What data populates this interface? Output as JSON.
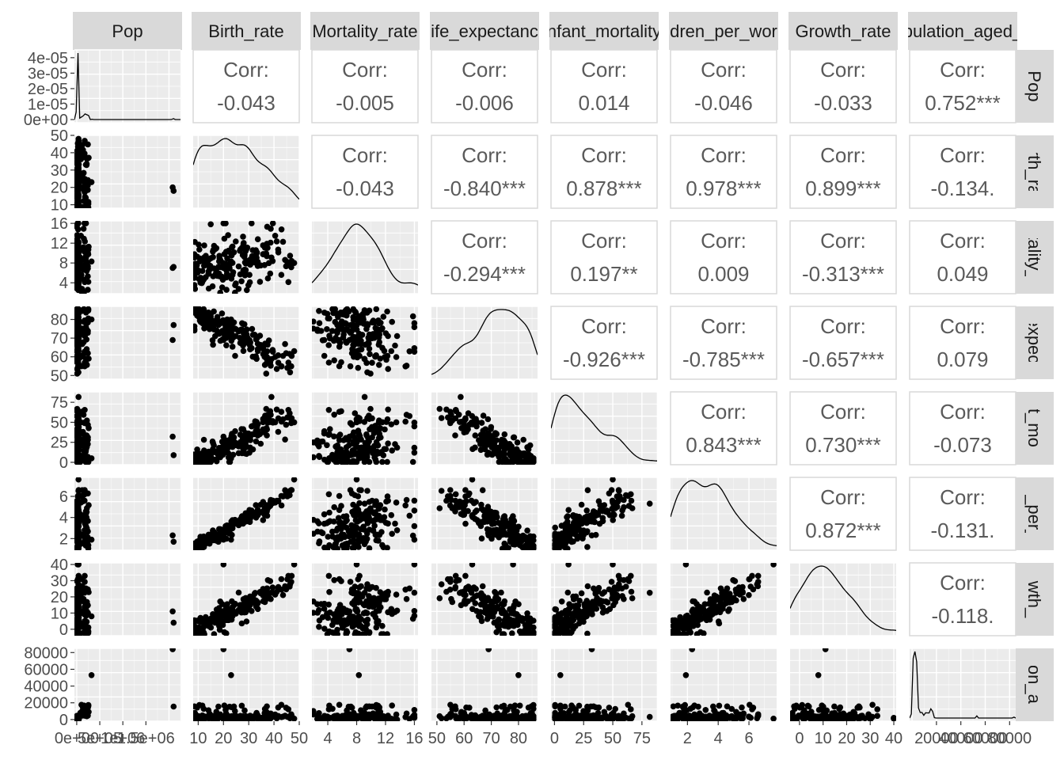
{
  "chart_data": {
    "type": "scatter",
    "variables": [
      "Pop",
      "Birth_rate",
      "Mortality_rate",
      "Life_expectancy",
      "Infant_mortality",
      "Children_per_woman",
      "Growth_rate",
      "Population_aged_"
    ],
    "col_labels": [
      "Pop",
      "Birth_rate",
      "Mortality_rate",
      "ife_expectanc",
      "nfant_mortality",
      "dren_per_wor",
      "Growth_rate",
      "pulation_aged_"
    ],
    "row_labels": [
      "Pop",
      "Birth_rate",
      "ortality_ra",
      "_expecta",
      "ant_morta",
      "en_per_w",
      "rowth_ra",
      "ation_age"
    ],
    "corr_label": "Corr:",
    "correlations": [
      {
        "row": 0,
        "col": 1,
        "value": "-0.043"
      },
      {
        "row": 0,
        "col": 2,
        "value": "-0.005"
      },
      {
        "row": 0,
        "col": 3,
        "value": "-0.006"
      },
      {
        "row": 0,
        "col": 4,
        "value": "0.014"
      },
      {
        "row": 0,
        "col": 5,
        "value": "-0.046"
      },
      {
        "row": 0,
        "col": 6,
        "value": "-0.033"
      },
      {
        "row": 0,
        "col": 7,
        "value": "0.752***"
      },
      {
        "row": 1,
        "col": 2,
        "value": "-0.043"
      },
      {
        "row": 1,
        "col": 3,
        "value": "-0.840***"
      },
      {
        "row": 1,
        "col": 4,
        "value": "0.878***"
      },
      {
        "row": 1,
        "col": 5,
        "value": "0.978***"
      },
      {
        "row": 1,
        "col": 6,
        "value": "0.899***"
      },
      {
        "row": 1,
        "col": 7,
        "value": "-0.134."
      },
      {
        "row": 2,
        "col": 3,
        "value": "-0.294***"
      },
      {
        "row": 2,
        "col": 4,
        "value": "0.197**"
      },
      {
        "row": 2,
        "col": 5,
        "value": "0.009"
      },
      {
        "row": 2,
        "col": 6,
        "value": "-0.313***"
      },
      {
        "row": 2,
        "col": 7,
        "value": "0.049"
      },
      {
        "row": 3,
        "col": 4,
        "value": "-0.926***"
      },
      {
        "row": 3,
        "col": 5,
        "value": "-0.785***"
      },
      {
        "row": 3,
        "col": 6,
        "value": "-0.657***"
      },
      {
        "row": 3,
        "col": 7,
        "value": "0.079"
      },
      {
        "row": 4,
        "col": 5,
        "value": "0.843***"
      },
      {
        "row": 4,
        "col": 6,
        "value": "0.730***"
      },
      {
        "row": 4,
        "col": 7,
        "value": "-0.073"
      },
      {
        "row": 5,
        "col": 6,
        "value": "0.872***"
      },
      {
        "row": 5,
        "col": 7,
        "value": "-0.131."
      },
      {
        "row": 6,
        "col": 7,
        "value": "-0.118."
      }
    ],
    "y_axes": [
      {
        "row": 0,
        "ticks": [
          "4e-05",
          "3e-05",
          "2e-05",
          "1e-05",
          "0e+00"
        ]
      },
      {
        "row": 1,
        "ticks": [
          "50",
          "40",
          "30",
          "20",
          "10"
        ]
      },
      {
        "row": 2,
        "ticks": [
          "16",
          "12",
          "8",
          "4"
        ]
      },
      {
        "row": 3,
        "ticks": [
          "80",
          "70",
          "60",
          "50"
        ]
      },
      {
        "row": 4,
        "ticks": [
          "75",
          "50",
          "25",
          "0"
        ]
      },
      {
        "row": 5,
        "ticks": [
          "6",
          "4",
          "2"
        ]
      },
      {
        "row": 6,
        "ticks": [
          "40",
          "30",
          "20",
          "10",
          "0"
        ]
      },
      {
        "row": 7,
        "ticks": [
          "80000",
          "60000",
          "40000",
          "20000",
          "0"
        ]
      }
    ],
    "x_axes": [
      {
        "col": 0,
        "ticks": [
          "0e+00",
          "5e+05",
          "1e+06",
          "1.5e+06"
        ]
      },
      {
        "col": 1,
        "ticks": [
          "10",
          "20",
          "30",
          "40",
          "50"
        ]
      },
      {
        "col": 2,
        "ticks": [
          "4",
          "8",
          "12",
          "16"
        ]
      },
      {
        "col": 3,
        "ticks": [
          "50",
          "60",
          "70",
          "80"
        ]
      },
      {
        "col": 4,
        "ticks": [
          "0",
          "25",
          "50",
          "75"
        ]
      },
      {
        "col": 5,
        "ticks": [
          "2",
          "4",
          "6"
        ]
      },
      {
        "col": 6,
        "ticks": [
          "0",
          "10",
          "20",
          "30",
          "40"
        ]
      },
      {
        "col": 7,
        "ticks": [
          "20000",
          "40000",
          "60000",
          "80000"
        ]
      }
    ],
    "ranges": [
      [
        -50000,
        2250000
      ],
      [
        8,
        50
      ],
      [
        1.8,
        16.5
      ],
      [
        48,
        87
      ],
      [
        -3,
        88
      ],
      [
        0.9,
        7.8
      ],
      [
        -4,
        41
      ],
      [
        -2000,
        85000
      ]
    ],
    "grid": true,
    "point_color": "#000000",
    "panel_bg": "#EBEBEB",
    "strip_bg": "#D9D9D9",
    "corr_text_color": "#5a5a5a"
  }
}
